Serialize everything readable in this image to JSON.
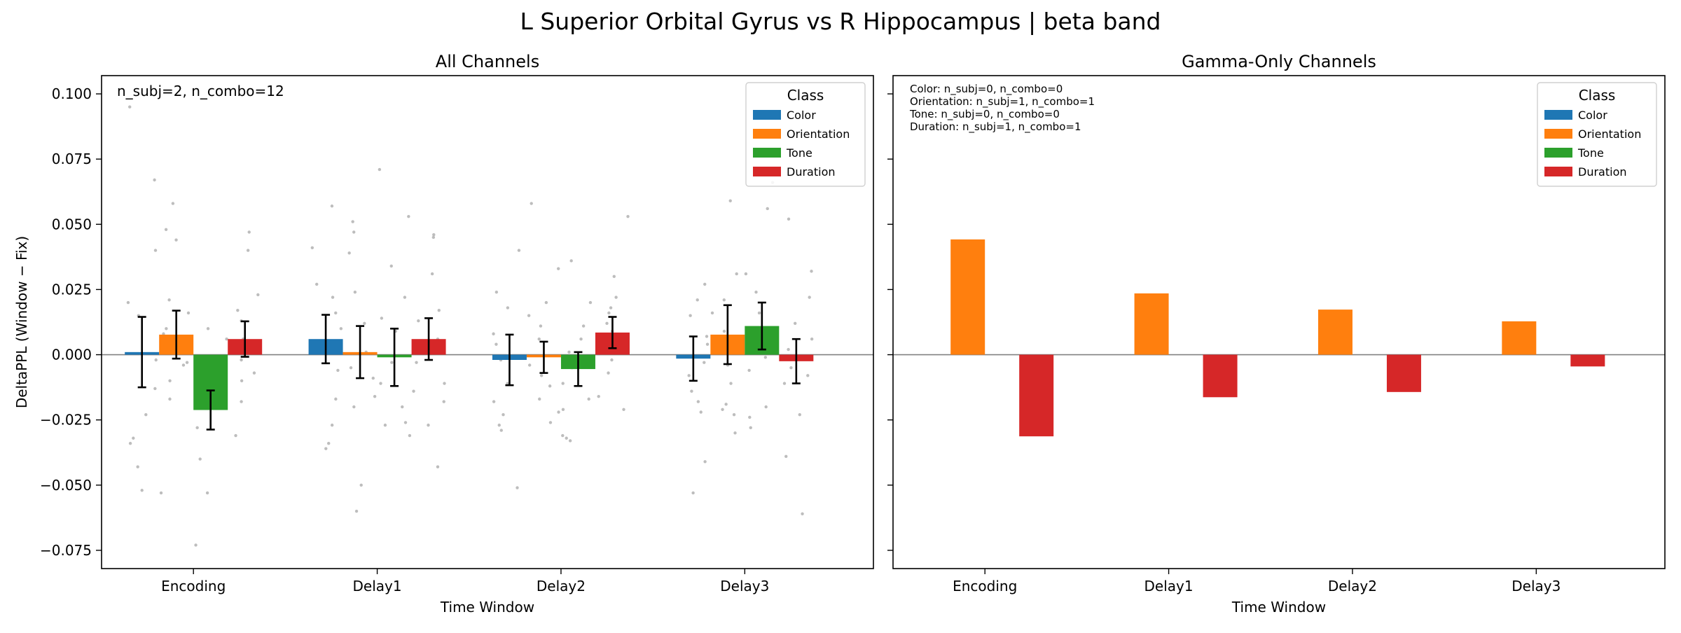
{
  "suptitle": "L Superior Orbital Gyrus vs R Hippocampus  |  beta band",
  "colors": {
    "Color": "#1f77b4",
    "Orientation": "#ff7f0e",
    "Tone": "#2ca02c",
    "Duration": "#d62728",
    "scatter": "#bdbdbd",
    "zero_line": "#808080"
  },
  "chart_data": [
    {
      "type": "bar",
      "title": "All Channels",
      "xlabel": "Time Window",
      "ylabel": "DeltaPPL (Window − Fix)",
      "categories": [
        "Encoding",
        "Delay1",
        "Delay2",
        "Delay3"
      ],
      "ylim": [
        -0.082,
        0.107
      ],
      "yticks": [
        -0.075,
        -0.05,
        -0.025,
        0.0,
        0.025,
        0.05,
        0.075,
        0.1
      ],
      "ytick_labels": [
        "−0.075",
        "−0.050",
        "−0.025",
        "0.000",
        "0.025",
        "0.050",
        "0.075",
        "0.100"
      ],
      "annotation": [
        "n_subj=2, n_combo=12"
      ],
      "legend": {
        "title": "Class",
        "placement": "top-right"
      },
      "series": [
        {
          "name": "Color",
          "values": [
            0.001,
            0.006,
            -0.002,
            -0.0015
          ],
          "err": [
            0.0135,
            0.0093,
            0.0097,
            0.0085
          ]
        },
        {
          "name": "Orientation",
          "values": [
            0.0077,
            0.001,
            -0.001,
            0.0077
          ],
          "err": [
            0.0092,
            0.01,
            0.006,
            0.0113
          ]
        },
        {
          "name": "Tone",
          "values": [
            -0.0212,
            -0.001,
            -0.0055,
            0.011
          ],
          "err": [
            0.0075,
            0.011,
            0.0065,
            0.009
          ]
        },
        {
          "name": "Duration",
          "values": [
            0.006,
            0.006,
            0.0085,
            -0.0025
          ],
          "err": [
            0.0068,
            0.008,
            0.006,
            0.0085
          ]
        }
      ],
      "points": [
        [
          [
            0.067,
            0.04,
            0.02,
            0.015,
            -0.013,
            -0.034,
            -0.043,
            -0.052,
            -0.023,
            -0.032,
            0.095,
            -0.002
          ],
          [
            0.058,
            0.048,
            0.044,
            0.021,
            0.008,
            -0.004,
            -0.01,
            -0.017,
            -0.053,
            0.016,
            0.01,
            -0.003
          ],
          [
            0.01,
            -0.001,
            -0.008,
            -0.011,
            -0.015,
            -0.02,
            -0.028,
            -0.04,
            -0.053,
            -0.073,
            0.006,
            -0.003
          ],
          [
            0.047,
            0.04,
            0.023,
            0.017,
            0.013,
            0.006,
            -0.002,
            -0.007,
            -0.01,
            -0.018,
            -0.031,
            0.004
          ]
        ],
        [
          [
            0.057,
            0.041,
            0.027,
            0.022,
            0.016,
            0.003,
            -0.006,
            -0.017,
            -0.027,
            -0.034,
            -0.036,
            0.01
          ],
          [
            0.051,
            0.047,
            0.039,
            0.024,
            0.012,
            0.001,
            -0.005,
            -0.009,
            -0.016,
            -0.02,
            -0.05,
            -0.06
          ],
          [
            0.071,
            0.053,
            0.034,
            0.022,
            0.009,
            -0.003,
            -0.011,
            -0.02,
            -0.026,
            -0.027,
            -0.031,
            0.014
          ],
          [
            0.046,
            0.045,
            0.031,
            0.017,
            0.013,
            0.006,
            -0.003,
            -0.011,
            -0.014,
            -0.018,
            -0.027,
            -0.043
          ]
        ],
        [
          [
            0.04,
            0.024,
            0.018,
            0.008,
            -0.002,
            -0.011,
            -0.018,
            -0.023,
            -0.027,
            -0.029,
            -0.051,
            0.004
          ],
          [
            0.058,
            0.033,
            0.02,
            0.015,
            0.006,
            -0.004,
            -0.008,
            -0.017,
            -0.022,
            -0.026,
            0.011,
            -0.012
          ],
          [
            0.036,
            0.02,
            0.011,
            0.006,
            0.001,
            -0.005,
            -0.011,
            -0.017,
            -0.021,
            -0.031,
            -0.032,
            -0.033
          ],
          [
            0.053,
            0.03,
            0.016,
            0.012,
            0.009,
            0.003,
            -0.002,
            -0.007,
            -0.016,
            -0.021,
            0.022,
            0.018
          ]
        ],
        [
          [
            0.027,
            0.021,
            0.015,
            0.007,
            -0.003,
            -0.008,
            -0.014,
            -0.018,
            -0.022,
            -0.041,
            -0.053,
            0.004
          ],
          [
            0.059,
            0.031,
            0.021,
            0.016,
            0.005,
            -0.004,
            -0.011,
            -0.021,
            -0.023,
            -0.03,
            -0.019,
            0.009
          ],
          [
            0.066,
            0.056,
            0.031,
            0.024,
            0.016,
            0.01,
            -0.001,
            -0.006,
            -0.02,
            -0.024,
            -0.028,
            0.003
          ],
          [
            0.052,
            0.032,
            0.022,
            0.012,
            0.006,
            -0.005,
            -0.011,
            -0.023,
            -0.039,
            -0.061,
            0.002,
            -0.008
          ]
        ]
      ]
    },
    {
      "type": "bar",
      "title": "Gamma-Only Channels",
      "xlabel": "Time Window",
      "categories": [
        "Encoding",
        "Delay1",
        "Delay2",
        "Delay3"
      ],
      "ylim": [
        -0.082,
        0.107
      ],
      "annotation": [
        "Color: n_subj=0, n_combo=0",
        "Orientation: n_subj=1, n_combo=1",
        "Tone: n_subj=0, n_combo=0",
        "Duration: n_subj=1, n_combo=1"
      ],
      "legend": {
        "title": "Class",
        "placement": "top-right"
      },
      "series": [
        {
          "name": "Color",
          "values": [
            null,
            null,
            null,
            null
          ]
        },
        {
          "name": "Orientation",
          "values": [
            0.0442,
            0.0235,
            0.0173,
            0.0128
          ]
        },
        {
          "name": "Tone",
          "values": [
            null,
            null,
            null,
            null
          ]
        },
        {
          "name": "Duration",
          "values": [
            -0.0313,
            -0.0163,
            -0.0143,
            -0.0045
          ]
        }
      ]
    }
  ]
}
